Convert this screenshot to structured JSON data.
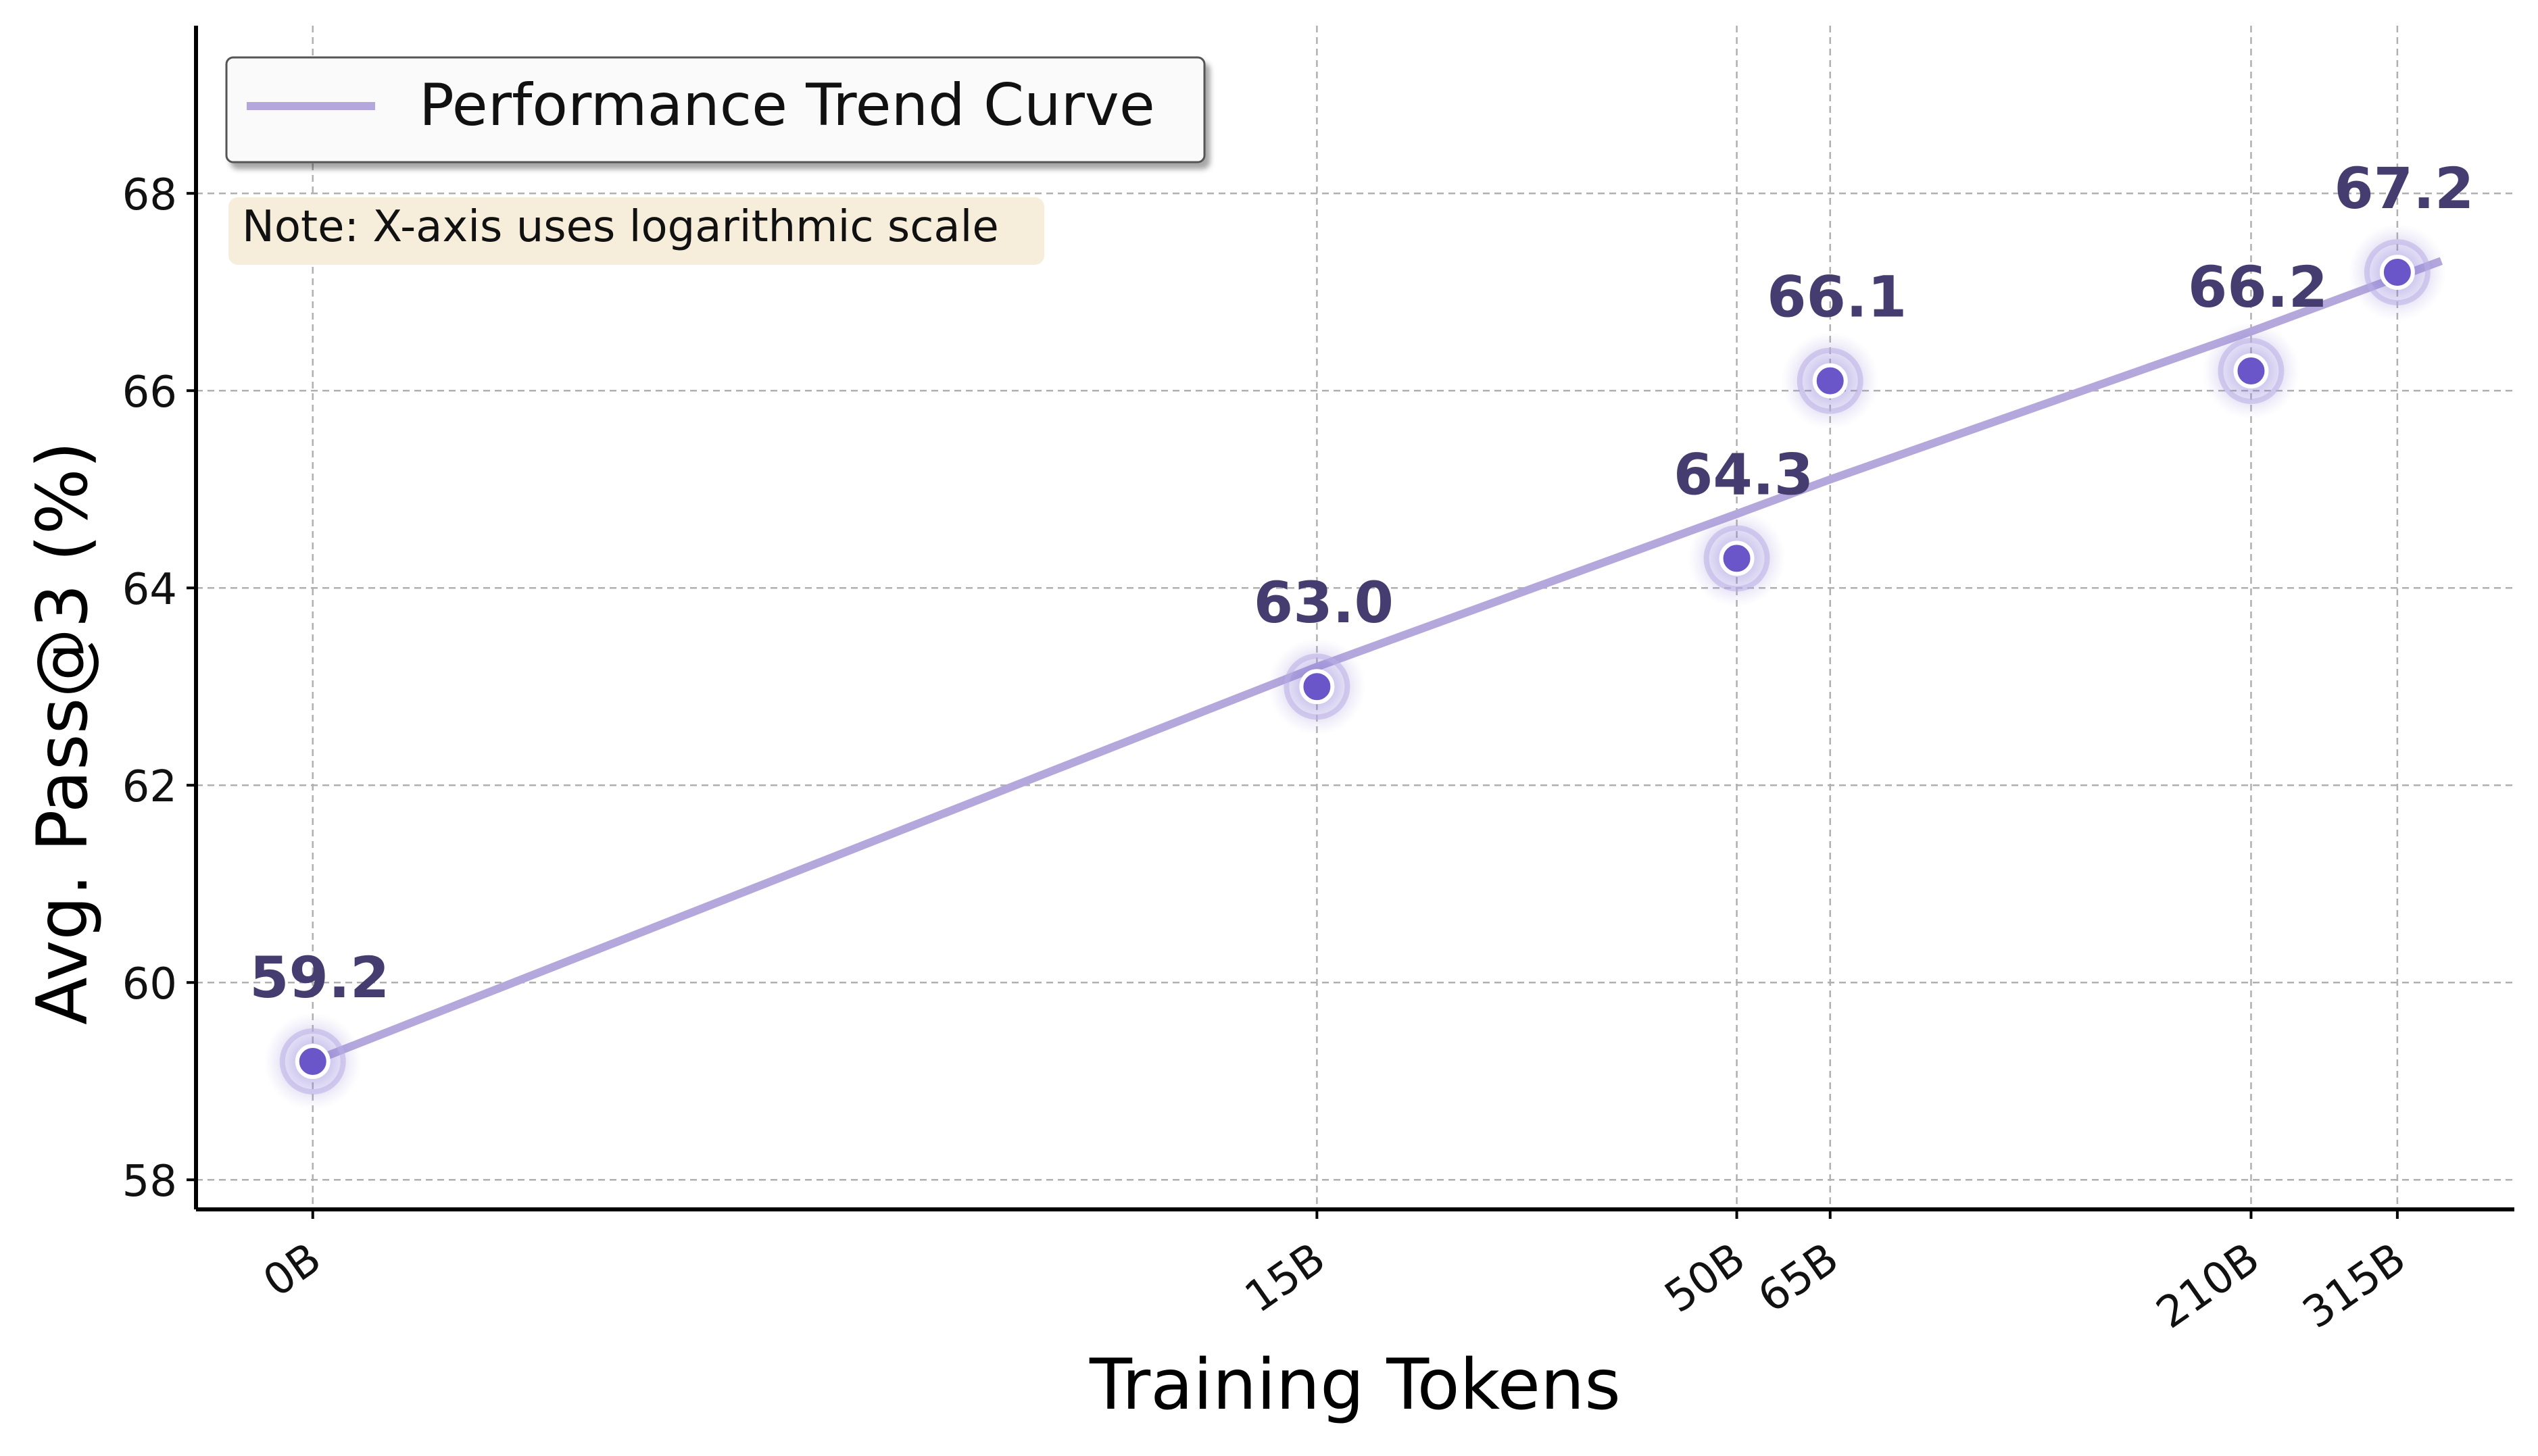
{
  "chart_data": {
    "type": "line",
    "title": "",
    "xlabel": "Training Tokens",
    "ylabel": "Avg. Pass@3 (%)",
    "x_scale": "log",
    "categories": [
      "0B",
      "15B",
      "50B",
      "65B",
      "210B",
      "315B"
    ],
    "series": [
      {
        "name": "",
        "values": [
          59.2,
          63.0,
          64.3,
          66.1,
          66.2,
          67.2
        ],
        "data_labels": [
          "59.2",
          "63.0",
          "64.3",
          "66.1",
          "66.2",
          "67.2"
        ]
      },
      {
        "name": "Performance Trend Curve",
        "type": "trend",
        "values": [
          59.2,
          63.2,
          64.75,
          65.1,
          66.6,
          67.15
        ]
      }
    ],
    "ylim": [
      57.7,
      69.7
    ],
    "yticks": [
      "58",
      "60",
      "62",
      "64",
      "66",
      "68"
    ],
    "grid": true,
    "legend_position": "top-left",
    "annotation": "Note: X-axis uses logarithmic scale",
    "colors": {
      "trend": "#b3a7dc",
      "point": "#6a56c8",
      "label": "#453d6f",
      "note_bg": "#f6eedb",
      "grid": "#b0b0b0"
    }
  }
}
